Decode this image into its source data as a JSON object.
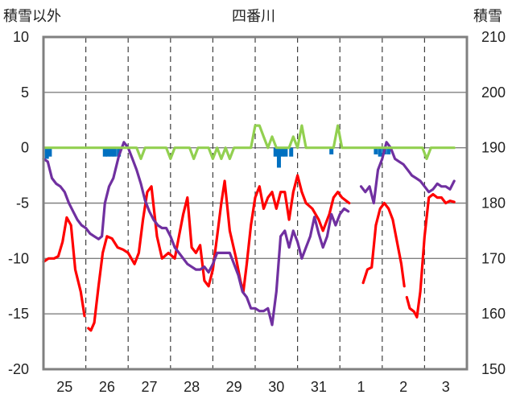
{
  "chart_data": {
    "type": "line",
    "title": "四番川",
    "ylabel_left": "積雪以外",
    "ylabel_right": "積雪",
    "ylim_left": [
      -20,
      10
    ],
    "ylim_right": [
      150,
      210
    ],
    "yticks_left": [
      "10",
      "5",
      "0",
      "-5",
      "-10",
      "-15",
      "-20"
    ],
    "yticks_right": [
      "210",
      "200",
      "190",
      "180",
      "170",
      "160",
      "150"
    ],
    "categories": [
      "25",
      "26",
      "27",
      "28",
      "29",
      "30",
      "31",
      "1",
      "2",
      "3"
    ],
    "grid": true,
    "series": [
      {
        "axis": "left",
        "color": "#ff0000",
        "points": [
          [
            0.0,
            -10.3
          ],
          [
            0.12,
            -10.0
          ],
          [
            0.25,
            -10.0
          ],
          [
            0.35,
            -9.8
          ],
          [
            0.45,
            -8.5
          ],
          [
            0.55,
            -6.3
          ],
          [
            0.65,
            -7.0
          ],
          [
            0.75,
            -11.0
          ],
          [
            0.88,
            -13.0
          ],
          [
            0.97,
            -15.2
          ],
          null,
          [
            1.06,
            -16.3
          ],
          [
            1.12,
            -16.5
          ],
          [
            1.2,
            -15.8
          ],
          [
            1.3,
            -12.5
          ],
          [
            1.4,
            -9.5
          ],
          [
            1.5,
            -8.0
          ],
          [
            1.62,
            -8.2
          ],
          [
            1.75,
            -9.0
          ],
          [
            1.88,
            -9.2
          ],
          [
            2.0,
            -9.5
          ],
          [
            2.15,
            -10.5
          ],
          [
            2.25,
            -9.5
          ],
          [
            2.35,
            -6.5
          ],
          [
            2.45,
            -4.0
          ],
          [
            2.55,
            -3.5
          ],
          [
            2.68,
            -8.0
          ],
          [
            2.8,
            -10.0
          ],
          [
            2.95,
            -9.5
          ],
          [
            3.1,
            -10.0
          ],
          [
            3.2,
            -8.0
          ],
          [
            3.3,
            -6.0
          ],
          [
            3.4,
            -4.5
          ],
          [
            3.5,
            -9.0
          ],
          [
            3.6,
            -9.5
          ],
          [
            3.7,
            -8.8
          ],
          [
            3.8,
            -12.0
          ],
          [
            3.9,
            -12.5
          ],
          [
            4.0,
            -11.0
          ],
          [
            4.1,
            -8.0
          ],
          [
            4.2,
            -5.0
          ],
          [
            4.28,
            -3.0
          ],
          [
            4.4,
            -7.5
          ],
          [
            4.55,
            -10.0
          ],
          [
            4.65,
            -12.0
          ],
          [
            4.72,
            -13.0
          ],
          [
            4.8,
            -10.5
          ],
          [
            4.9,
            -7.0
          ],
          [
            5.0,
            -4.5
          ],
          [
            5.1,
            -3.5
          ],
          [
            5.2,
            -5.5
          ],
          [
            5.3,
            -4.5
          ],
          [
            5.4,
            -4.0
          ],
          [
            5.5,
            -5.5
          ],
          [
            5.6,
            -4.0
          ],
          [
            5.7,
            -4.0
          ],
          [
            5.8,
            -6.5
          ],
          [
            5.9,
            -4.0
          ],
          [
            6.0,
            -2.5
          ],
          [
            6.1,
            -4.0
          ],
          [
            6.2,
            -5.0
          ],
          [
            6.35,
            -5.5
          ],
          [
            6.5,
            -6.5
          ],
          [
            6.6,
            -7.5
          ],
          [
            6.75,
            -6.0
          ],
          [
            6.85,
            -4.5
          ],
          [
            6.95,
            -4.0
          ],
          [
            7.05,
            -4.5
          ],
          [
            7.15,
            -4.8
          ],
          [
            7.22,
            -5.0
          ],
          null,
          [
            7.55,
            -12.2
          ],
          [
            7.65,
            -11.0
          ],
          [
            7.75,
            -10.8
          ],
          [
            7.85,
            -7.0
          ],
          [
            7.95,
            -5.5
          ],
          [
            8.05,
            -5.0
          ],
          [
            8.15,
            -5.5
          ],
          [
            8.25,
            -6.5
          ],
          [
            8.35,
            -8.5
          ],
          [
            8.45,
            -10.5
          ],
          [
            8.52,
            -12.5
          ],
          null,
          [
            8.58,
            -13.5
          ],
          [
            8.65,
            -14.5
          ],
          [
            8.75,
            -14.8
          ],
          [
            8.82,
            -15.3
          ],
          [
            8.9,
            -13.0
          ],
          [
            9.0,
            -8.0
          ],
          [
            9.1,
            -4.5
          ],
          [
            9.2,
            -4.2
          ],
          [
            9.3,
            -4.5
          ],
          [
            9.4,
            -4.5
          ],
          [
            9.5,
            -5.0
          ],
          [
            9.6,
            -4.8
          ],
          [
            9.7,
            -4.9
          ]
        ]
      },
      {
        "axis": "right",
        "color": "#7030a0",
        "points": [
          [
            0.0,
            188.0
          ],
          [
            0.1,
            187.5
          ],
          [
            0.2,
            184.5
          ],
          [
            0.3,
            183.5
          ],
          [
            0.4,
            183.0
          ],
          [
            0.5,
            182.0
          ],
          [
            0.6,
            180.0
          ],
          [
            0.7,
            178.5
          ],
          [
            0.8,
            177.0
          ],
          [
            0.9,
            176.0
          ],
          [
            1.0,
            175.5
          ],
          [
            1.1,
            174.5
          ],
          [
            1.2,
            174.0
          ],
          [
            1.3,
            173.5
          ],
          [
            1.38,
            174.0
          ],
          [
            1.45,
            180.0
          ],
          [
            1.55,
            183.0
          ],
          [
            1.65,
            184.5
          ],
          [
            1.78,
            188.5
          ],
          [
            1.9,
            191.0
          ],
          [
            2.0,
            190.0
          ],
          [
            2.1,
            188.0
          ],
          [
            2.2,
            186.0
          ],
          [
            2.3,
            183.5
          ],
          [
            2.4,
            180.5
          ],
          [
            2.5,
            178.5
          ],
          [
            2.6,
            177.0
          ],
          [
            2.7,
            176.0
          ],
          [
            2.8,
            175.5
          ],
          [
            2.9,
            175.5
          ],
          [
            3.0,
            174.0
          ],
          [
            3.1,
            172.0
          ],
          [
            3.2,
            171.0
          ],
          [
            3.3,
            170.0
          ],
          [
            3.4,
            169.0
          ],
          [
            3.5,
            168.5
          ],
          [
            3.6,
            168.0
          ],
          [
            3.7,
            168.0
          ],
          [
            3.8,
            168.5
          ],
          [
            3.9,
            167.5
          ],
          [
            4.0,
            169.0
          ],
          [
            4.1,
            171.0
          ],
          [
            4.2,
            171.0
          ],
          [
            4.3,
            171.0
          ],
          [
            4.4,
            171.0
          ],
          [
            4.5,
            169.0
          ],
          [
            4.6,
            167.0
          ],
          [
            4.7,
            164.0
          ],
          [
            4.8,
            163.0
          ],
          [
            4.9,
            161.0
          ],
          [
            5.0,
            161.0
          ],
          [
            5.1,
            160.5
          ],
          [
            5.2,
            160.5
          ],
          [
            5.3,
            161.0
          ],
          [
            5.4,
            158.0
          ],
          [
            5.5,
            164.0
          ],
          [
            5.6,
            174.0
          ],
          [
            5.7,
            175.0
          ],
          [
            5.8,
            172.0
          ],
          [
            5.9,
            175.0
          ],
          [
            6.0,
            173.0
          ],
          [
            6.1,
            170.0
          ],
          [
            6.2,
            172.0
          ],
          [
            6.3,
            174.0
          ],
          [
            6.4,
            177.5
          ],
          [
            6.5,
            174.5
          ],
          [
            6.6,
            172.0
          ],
          [
            6.7,
            174.0
          ],
          [
            6.8,
            178.0
          ],
          [
            6.9,
            176.0
          ],
          [
            7.0,
            178.0
          ],
          [
            7.1,
            179.0
          ],
          [
            7.2,
            178.5
          ],
          null,
          [
            7.5,
            183.0
          ],
          [
            7.6,
            182.0
          ],
          [
            7.7,
            183.0
          ],
          [
            7.8,
            180.0
          ],
          [
            7.9,
            186.0
          ],
          [
            8.0,
            188.0
          ],
          [
            8.1,
            191.0
          ],
          [
            8.2,
            190.0
          ],
          [
            8.3,
            188.0
          ],
          [
            8.4,
            187.5
          ],
          [
            8.5,
            187.0
          ],
          [
            8.6,
            186.0
          ],
          [
            8.7,
            185.0
          ],
          [
            8.8,
            184.5
          ],
          [
            8.9,
            184.0
          ],
          [
            9.0,
            183.0
          ],
          [
            9.1,
            182.0
          ],
          [
            9.2,
            182.5
          ],
          [
            9.3,
            183.5
          ],
          [
            9.4,
            183.0
          ],
          [
            9.5,
            183.0
          ],
          [
            9.6,
            182.5
          ],
          [
            9.7,
            184.0
          ]
        ]
      },
      {
        "axis": "left",
        "color": "#92d050",
        "points": [
          [
            0.0,
            0.0
          ],
          [
            2.2,
            0.0
          ],
          [
            2.3,
            -1.0
          ],
          [
            2.4,
            0.0
          ],
          [
            2.9,
            0.0
          ],
          [
            3.0,
            -1.0
          ],
          [
            3.1,
            0.0
          ],
          [
            3.45,
            0.0
          ],
          [
            3.55,
            -1.0
          ],
          [
            3.65,
            0.0
          ],
          [
            3.9,
            0.0
          ],
          [
            4.0,
            -1.0
          ],
          [
            4.1,
            0.0
          ],
          [
            4.2,
            -1.0
          ],
          [
            4.3,
            0.0
          ],
          [
            4.4,
            -1.0
          ],
          [
            4.5,
            0.0
          ],
          [
            4.9,
            0.0
          ],
          [
            5.0,
            2.0
          ],
          [
            5.1,
            2.0
          ],
          [
            5.2,
            1.0
          ],
          [
            5.3,
            0.0
          ],
          [
            5.4,
            1.0
          ],
          [
            5.5,
            0.0
          ],
          [
            5.8,
            0.0
          ],
          [
            5.9,
            1.0
          ],
          [
            6.0,
            0.0
          ],
          [
            6.1,
            2.0
          ],
          [
            6.2,
            0.0
          ],
          [
            6.85,
            0.0
          ],
          [
            6.95,
            2.0
          ],
          [
            7.05,
            0.0
          ],
          [
            8.95,
            0.0
          ],
          [
            9.05,
            -1.0
          ],
          [
            9.15,
            0.0
          ],
          [
            9.7,
            0.0
          ]
        ]
      }
    ],
    "bars": {
      "axis": "left",
      "color": "#0070c0",
      "x": [
        0.08,
        0.15,
        1.45,
        1.52,
        1.6,
        1.68,
        1.78,
        5.48,
        5.56,
        5.64,
        5.72,
        5.85,
        6.8,
        7.85,
        7.95,
        8.05,
        8.15
      ],
      "values": [
        -1.0,
        -0.8,
        -0.8,
        -0.8,
        -0.8,
        -0.8,
        -0.8,
        -0.8,
        -1.8,
        -0.8,
        -0.8,
        -0.8,
        -0.6,
        -0.6,
        -0.8,
        -0.6,
        -0.6
      ]
    }
  }
}
